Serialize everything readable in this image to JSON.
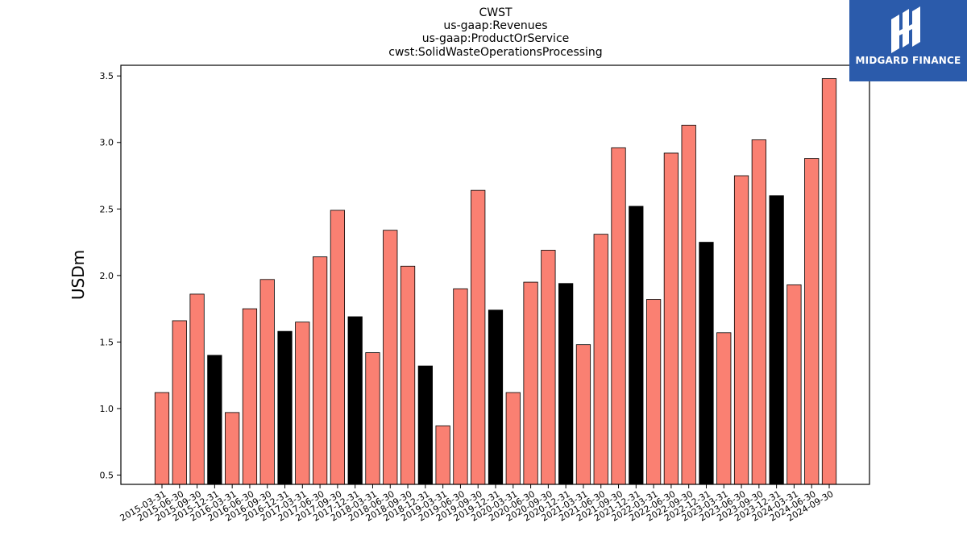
{
  "chart_data": {
    "type": "bar",
    "title_lines": [
      "CWST",
      "us-gaap:Revenues",
      "us-gaap:ProductOrService",
      "cwst:SolidWasteOperationsProcessing"
    ],
    "xlabel": "",
    "ylabel": "USDm",
    "ylim": [
      0.43,
      3.58
    ],
    "yticks": [
      "0.5",
      "1.0",
      "1.5",
      "2.0",
      "2.5",
      "3.0",
      "3.5"
    ],
    "grid": false,
    "colors": {
      "quarter": "#fa8072",
      "year_end": "#000000",
      "edge": "#000000"
    },
    "categories": [
      "2015-03-31",
      "2015-06-30",
      "2015-09-30",
      "2015-12-31",
      "2016-03-31",
      "2016-06-30",
      "2016-09-30",
      "2016-12-31",
      "2017-03-31",
      "2017-06-30",
      "2017-09-30",
      "2017-12-31",
      "2018-03-31",
      "2018-06-30",
      "2018-09-30",
      "2018-12-31",
      "2019-03-31",
      "2019-06-30",
      "2019-09-30",
      "2019-12-31",
      "2020-03-31",
      "2020-06-30",
      "2020-09-30",
      "2020-12-31",
      "2021-03-31",
      "2021-06-30",
      "2021-09-30",
      "2021-12-31",
      "2022-03-31",
      "2022-06-30",
      "2022-09-30",
      "2022-12-31",
      "2023-03-31",
      "2023-06-30",
      "2023-09-30",
      "2023-12-31",
      "2024-03-31",
      "2024-06-30",
      "2024-09-30"
    ],
    "values": [
      1.12,
      1.66,
      1.86,
      1.4,
      0.97,
      1.75,
      1.97,
      1.58,
      1.65,
      2.14,
      2.49,
      1.69,
      1.42,
      2.34,
      2.07,
      1.32,
      0.87,
      1.9,
      2.64,
      1.74,
      1.12,
      1.95,
      2.19,
      1.94,
      1.48,
      2.31,
      2.96,
      2.52,
      1.82,
      2.92,
      3.13,
      2.25,
      1.57,
      2.75,
      3.02,
      2.6,
      1.93,
      2.88,
      3.48
    ],
    "highlight": [
      false,
      false,
      false,
      true,
      false,
      false,
      false,
      true,
      false,
      false,
      false,
      true,
      false,
      false,
      false,
      true,
      false,
      false,
      false,
      true,
      false,
      false,
      false,
      true,
      false,
      false,
      false,
      true,
      false,
      false,
      false,
      true,
      false,
      false,
      false,
      true,
      false,
      false,
      false
    ]
  },
  "logo": {
    "text": "MIDGARD FINANCE",
    "background": "#2b5bab"
  }
}
